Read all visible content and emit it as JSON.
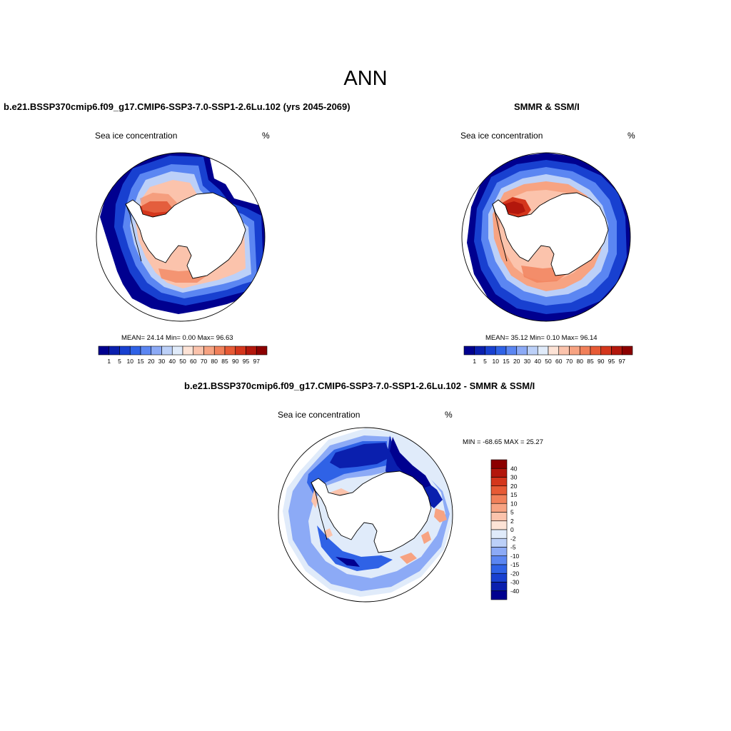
{
  "figure_title": "ANN",
  "colors": {
    "ice_scale": [
      "#00008f",
      "#0a1fae",
      "#1840d0",
      "#2f62e6",
      "#5b86f2",
      "#8caaf6",
      "#bcd0f8",
      "#e0ebfa",
      "#fde3d6",
      "#fbc3ac",
      "#f7a382",
      "#f1805a",
      "#e75a35",
      "#d4361c",
      "#b3170c",
      "#8c0000"
    ],
    "diff_scale": [
      "#8c0000",
      "#b3170c",
      "#d4361c",
      "#e75a35",
      "#f1805a",
      "#f7a382",
      "#fbc3ac",
      "#fde3d6",
      "#e0ebfa",
      "#bcd0f8",
      "#8caaf6",
      "#5b86f2",
      "#2f62e6",
      "#1840d0",
      "#0a1fae",
      "#00008f"
    ]
  },
  "panels": {
    "model": {
      "title": "b.e21.BSSP370cmip6.f09_g17.CMIP6-SSP3-7.0-SSP1-2.6Lu.102 (yrs 2045-2069)",
      "variable": "Sea ice concentration",
      "units": "%",
      "stats": "MEAN=  24.14  Min=   0.00  Max=  96.63",
      "stat_values": {
        "mean": 24.14,
        "min": 0.0,
        "max": 96.63
      },
      "colorbar_labels": [
        "1",
        "5",
        "10",
        "15",
        "20",
        "30",
        "40",
        "50",
        "60",
        "70",
        "80",
        "85",
        "90",
        "95",
        "97"
      ]
    },
    "obs": {
      "title": "SMMR & SSM/I",
      "variable": "Sea ice concentration",
      "units": "%",
      "stats": "MEAN=  35.12  Min=   0.10  Max=  96.14",
      "stat_values": {
        "mean": 35.12,
        "min": 0.1,
        "max": 96.14
      },
      "colorbar_labels": [
        "1",
        "5",
        "10",
        "15",
        "20",
        "30",
        "40",
        "50",
        "60",
        "70",
        "80",
        "85",
        "90",
        "95",
        "97"
      ]
    },
    "diff": {
      "title": "b.e21.BSSP370cmip6.f09_g17.CMIP6-SSP3-7.0-SSP1-2.6Lu.102 - SMMR & SSM/I",
      "variable": "Sea ice concentration",
      "units": "%",
      "stats": "MIN = -68.65 MAX =  25.27",
      "stat_values": {
        "min": -68.65,
        "max": 25.27
      },
      "colorbar_labels": [
        "40",
        "30",
        "20",
        "15",
        "10",
        "5",
        "2",
        "0",
        "-2",
        "-5",
        "-10",
        "-15",
        "-20",
        "-30",
        "-40"
      ]
    }
  }
}
